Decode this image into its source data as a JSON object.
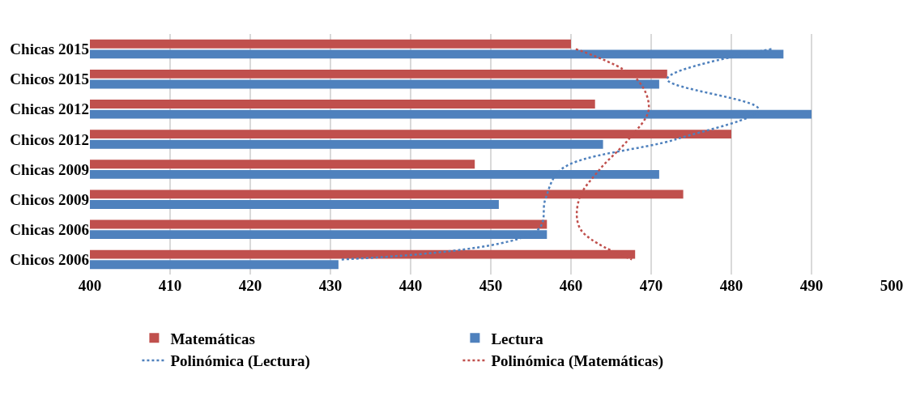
{
  "chart_data": {
    "type": "bar",
    "orientation": "horizontal",
    "categories": [
      "Chicas 2015",
      "Chicos 2015",
      "Chicas 2012",
      "Chicos 2012",
      "Chicas 2009",
      "Chicos 2009",
      "Chicas 2006",
      "Chicos 2006"
    ],
    "series": [
      {
        "name": "Matemáticas",
        "color": "#c0504d",
        "values": [
          460,
          472,
          463,
          480,
          448,
          474,
          457,
          468
        ]
      },
      {
        "name": "Lectura",
        "color": "#4f81bd",
        "values": [
          486.5,
          471,
          490,
          464,
          471,
          451,
          457,
          431
        ]
      },
      {
        "name": "Polinómica (Lectura)",
        "type": "line",
        "line_style": "dotted",
        "marker": "none",
        "color": "#4f81bd",
        "values": [
          485,
          472,
          483.4,
          473.1,
          458.8,
          456.8,
          455.9,
          431.4
        ]
      },
      {
        "name": "Polinómica (Matemáticas)",
        "type": "line",
        "line_style": "dotted",
        "marker": "none",
        "color": "#c0504d",
        "values": [
          460.6,
          468.2,
          469.7,
          467.2,
          463.6,
          461,
          461.2,
          467.6
        ]
      }
    ],
    "xlim": [
      400,
      500
    ],
    "xticks": [
      400,
      410,
      420,
      430,
      440,
      450,
      460,
      470,
      480,
      490,
      500
    ],
    "grid": "x",
    "legend": "bottom"
  }
}
